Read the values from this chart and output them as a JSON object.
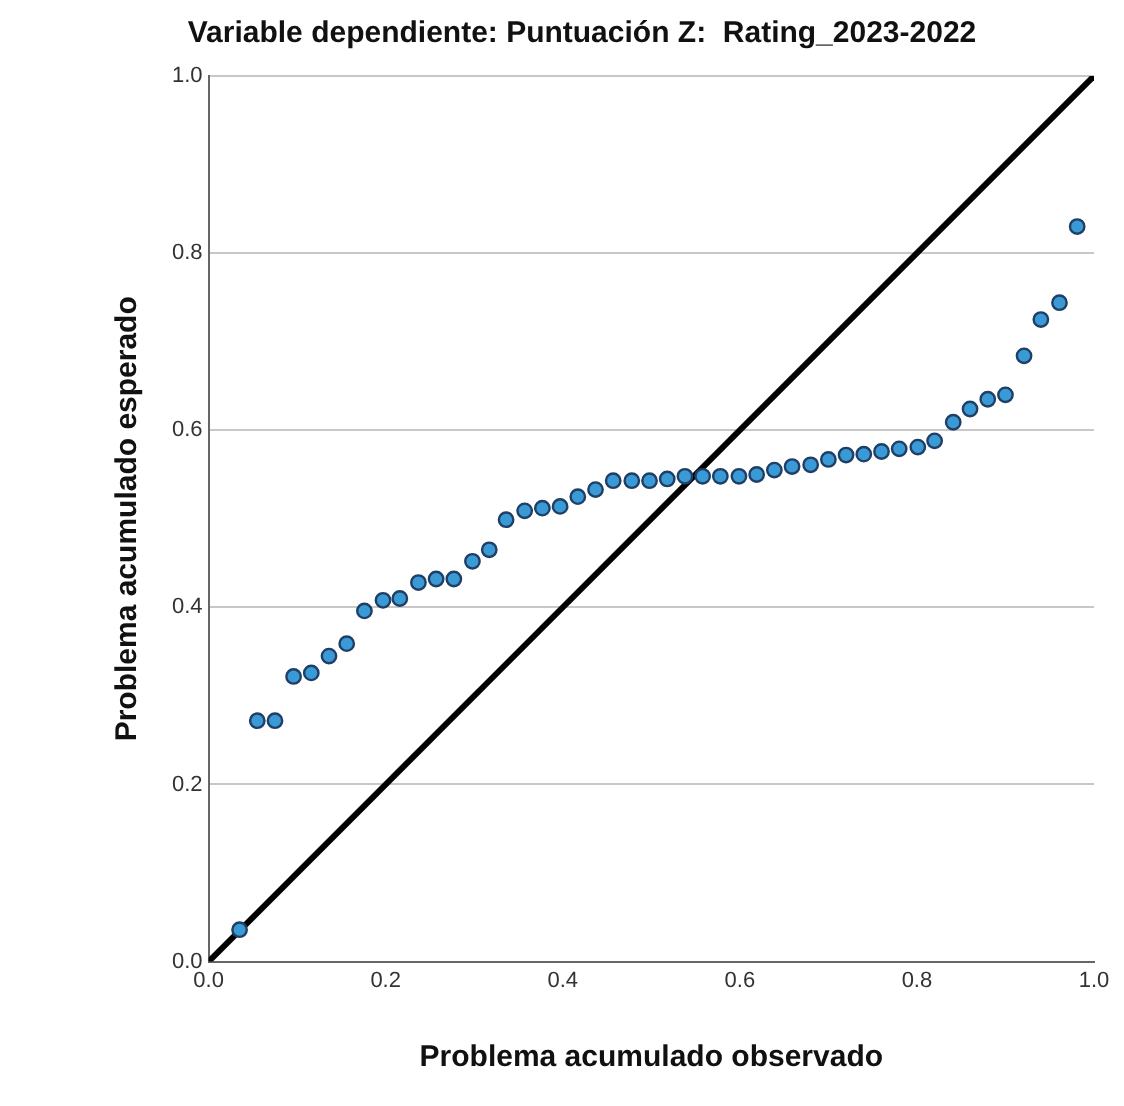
{
  "chart_data": {
    "type": "scatter",
    "title": "Variable dependiente: Puntuación Z:  Rating_2023-2022",
    "xlabel": "Problema acumulado observado",
    "ylabel": "Problema acumulado esperado",
    "xlim": [
      0,
      1
    ],
    "ylim": [
      0,
      1
    ],
    "xticks": [
      {
        "value": 0,
        "label": "0.0"
      },
      0.2,
      0.4,
      0.6,
      0.8,
      {
        "value": 1,
        "label": "1.0"
      }
    ],
    "yticks": [
      {
        "value": 0,
        "label": "0.0"
      },
      0.2,
      0.4,
      0.6,
      0.8,
      {
        "value": 1,
        "label": "1.0"
      }
    ],
    "grid": "y",
    "legend": false,
    "marker": "circle",
    "series": [
      {
        "color": "#3a9ad6",
        "x": [
          0.035,
          0.055,
          0.075,
          0.096,
          0.116,
          0.136,
          0.156,
          0.176,
          0.197,
          0.216,
          0.237,
          0.257,
          0.277,
          0.298,
          0.317,
          0.336,
          0.357,
          0.377,
          0.397,
          0.417,
          0.437,
          0.457,
          0.478,
          0.498,
          0.518,
          0.538,
          0.558,
          0.578,
          0.599,
          0.619,
          0.639,
          0.659,
          0.68,
          0.7,
          0.72,
          0.74,
          0.76,
          0.78,
          0.801,
          0.82,
          0.841,
          0.86,
          0.88,
          0.9,
          0.921,
          0.94,
          0.961,
          0.981
        ],
        "values": [
          0.036,
          0.272,
          0.272,
          0.322,
          0.326,
          0.345,
          0.359,
          0.396,
          0.408,
          0.41,
          0.428,
          0.432,
          0.432,
          0.452,
          0.465,
          0.499,
          0.509,
          0.512,
          0.514,
          0.525,
          0.533,
          0.543,
          0.543,
          0.543,
          0.545,
          0.548,
          0.548,
          0.548,
          0.548,
          0.55,
          0.555,
          0.559,
          0.561,
          0.567,
          0.572,
          0.573,
          0.576,
          0.579,
          0.581,
          0.588,
          0.609,
          0.624,
          0.635,
          0.64,
          0.684,
          0.725,
          0.744,
          0.83
        ]
      },
      {
        "type": "line",
        "color": "#000000",
        "marker": "none",
        "x": [
          0,
          1
        ],
        "values": [
          0,
          1
        ]
      }
    ]
  }
}
